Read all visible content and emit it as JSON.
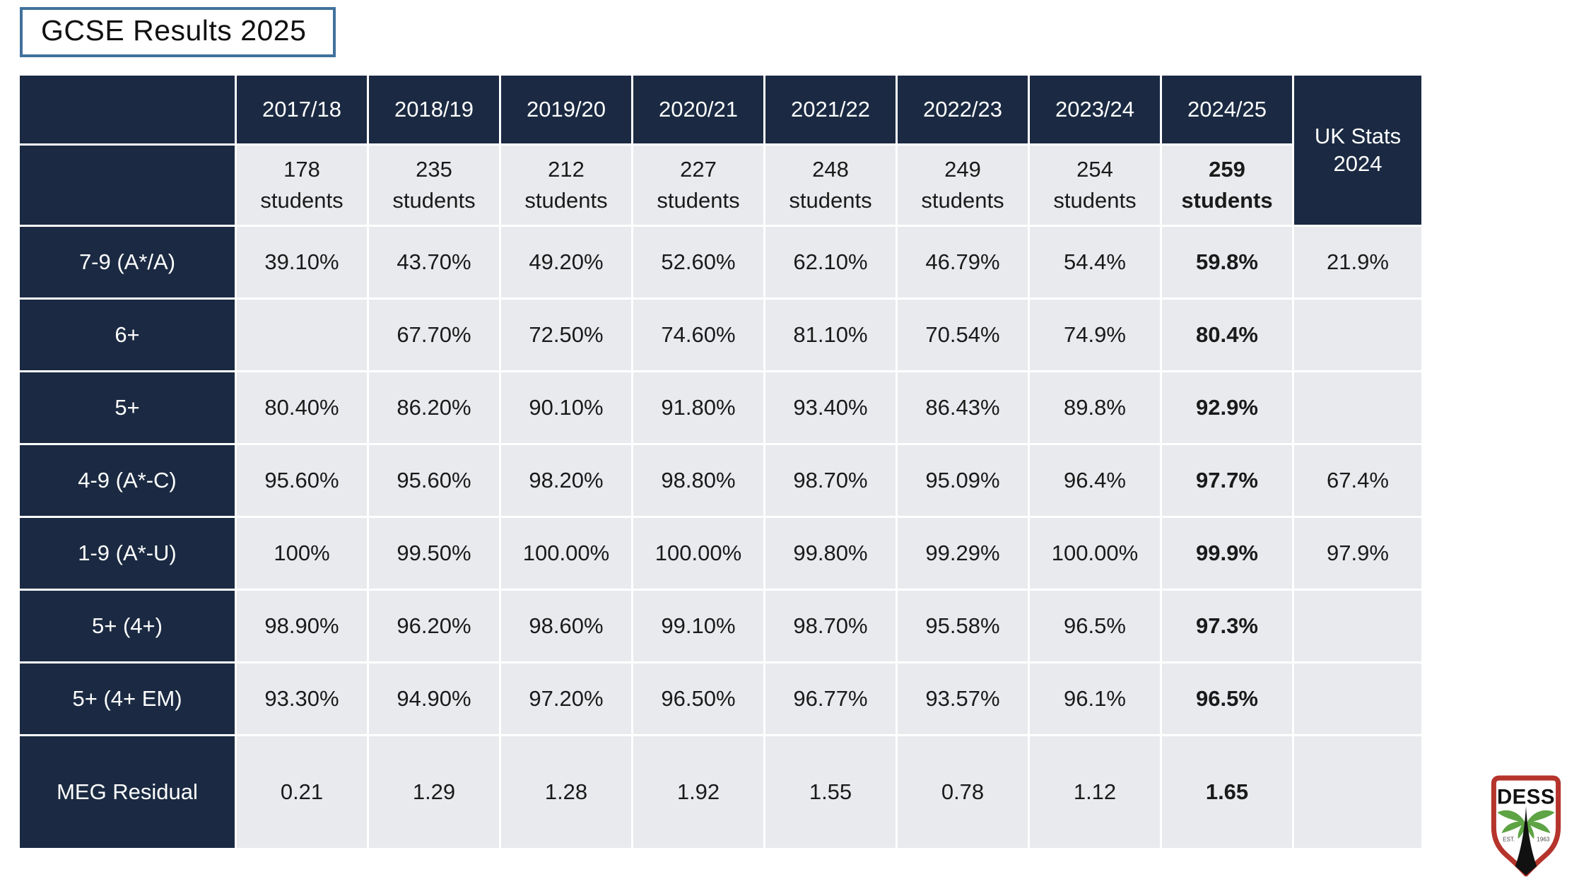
{
  "page": {
    "title": "GCSE Results 2025"
  },
  "colors": {
    "header_navy": "#1b2a42",
    "cell_gray": "#e8eaed",
    "gridline_white": "#ffffff",
    "title_border_blue": "#41719c",
    "logo_red": "#b5342c",
    "logo_green": "#5ea344",
    "logo_black": "#111111"
  },
  "table_meta": {
    "students_word": "students",
    "bold_column_year": "2024/25"
  },
  "chart_data": {
    "type": "table",
    "title": "GCSE Results 2025",
    "year_columns": [
      "2017/18",
      "2018/19",
      "2019/20",
      "2020/21",
      "2021/22",
      "2022/23",
      "2023/24",
      "2024/25"
    ],
    "students_per_year": [
      "178",
      "235",
      "212",
      "227",
      "248",
      "249",
      "254",
      "259"
    ],
    "uk_stats_column": "UK Stats 2024",
    "rows": [
      {
        "label": "7-9 (A*/A)",
        "values": [
          "39.10%",
          "43.70%",
          "49.20%",
          "52.60%",
          "62.10%",
          "46.79%",
          "54.4%",
          "59.8%"
        ],
        "uk_stats": "21.9%"
      },
      {
        "label": "6+",
        "values": [
          "",
          "67.70%",
          "72.50%",
          "74.60%",
          "81.10%",
          "70.54%",
          "74.9%",
          "80.4%"
        ],
        "uk_stats": ""
      },
      {
        "label": "5+",
        "values": [
          "80.40%",
          "86.20%",
          "90.10%",
          "91.80%",
          "93.40%",
          "86.43%",
          "89.8%",
          "92.9%"
        ],
        "uk_stats": ""
      },
      {
        "label": "4-9 (A*-C)",
        "values": [
          "95.60%",
          "95.60%",
          "98.20%",
          "98.80%",
          "98.70%",
          "95.09%",
          "96.4%",
          "97.7%"
        ],
        "uk_stats": "67.4%"
      },
      {
        "label": "1-9 (A*-U)",
        "values": [
          "100%",
          "99.50%",
          "100.00%",
          "100.00%",
          "99.80%",
          "99.29%",
          "100.00%",
          "99.9%"
        ],
        "uk_stats": "97.9%"
      },
      {
        "label": "5+ (4+)",
        "values": [
          "98.90%",
          "96.20%",
          "98.60%",
          "99.10%",
          "98.70%",
          "95.58%",
          "96.5%",
          "97.3%"
        ],
        "uk_stats": ""
      },
      {
        "label": "5+ (4+ EM)",
        "values": [
          "93.30%",
          "94.90%",
          "97.20%",
          "96.50%",
          "96.77%",
          "93.57%",
          "96.1%",
          "96.5%"
        ],
        "uk_stats": ""
      },
      {
        "label": "MEG Residual",
        "values": [
          "0.21",
          "1.29",
          "1.28",
          "1.92",
          "1.55",
          "0.78",
          "1.12",
          "1.65"
        ],
        "uk_stats": ""
      }
    ]
  },
  "logo": {
    "text": "DESS",
    "est": "EST.",
    "year": "1963"
  }
}
